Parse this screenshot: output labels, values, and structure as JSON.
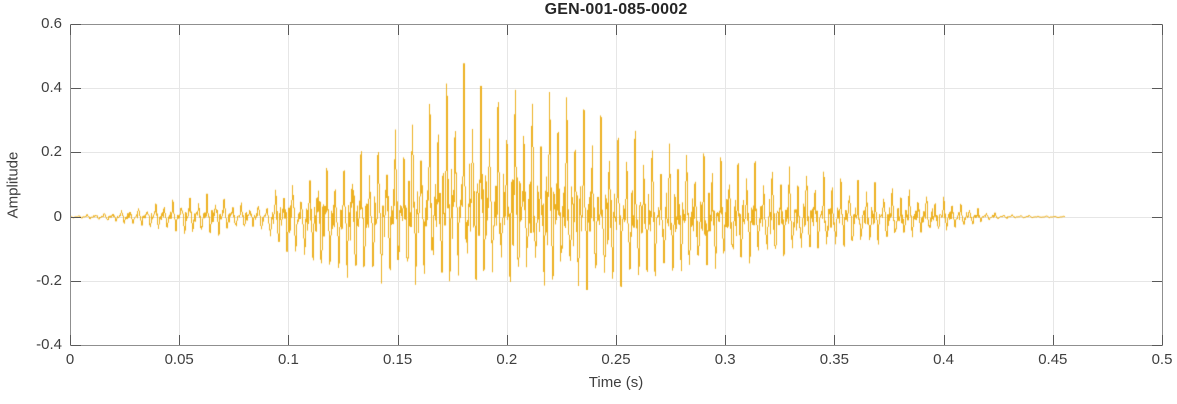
{
  "chart_data": {
    "type": "line",
    "subtype": "audio-waveform",
    "title": "GEN-001-085-0002",
    "xlabel": "Time (s)",
    "ylabel": "Amplitude",
    "xlim": [
      0,
      0.5
    ],
    "ylim": [
      -0.4,
      0.6
    ],
    "xticks": [
      0,
      0.05,
      0.1,
      0.15,
      0.2,
      0.25,
      0.3,
      0.35,
      0.4,
      0.45,
      0.5
    ],
    "yticks": [
      -0.4,
      -0.2,
      0,
      0.2,
      0.4,
      0.6
    ],
    "grid": true,
    "legend": null,
    "line_color": "#EDB120",
    "signal": {
      "t_start": 0,
      "t_end": 0.455,
      "fundamental_hz": 255,
      "peak_amplitude": 0.57,
      "peak_time": 0.181,
      "min_amplitude": -0.29,
      "min_time": 0.24,
      "envelope_t": [
        0,
        0.01,
        0.02,
        0.03,
        0.04,
        0.05,
        0.06,
        0.07,
        0.08,
        0.085,
        0.09,
        0.095,
        0.105,
        0.115,
        0.125,
        0.135,
        0.145,
        0.155,
        0.165,
        0.172,
        0.178,
        0.181,
        0.184,
        0.19,
        0.2,
        0.21,
        0.218,
        0.225,
        0.232,
        0.24,
        0.25,
        0.26,
        0.27,
        0.28,
        0.29,
        0.3,
        0.31,
        0.32,
        0.33,
        0.34,
        0.35,
        0.36,
        0.37,
        0.38,
        0.39,
        0.4,
        0.405,
        0.41,
        0.415,
        0.42,
        0.43,
        0.44,
        0.455
      ],
      "envelope_upper": [
        0.005,
        0.01,
        0.02,
        0.035,
        0.055,
        0.075,
        0.09,
        0.085,
        0.05,
        0.04,
        0.08,
        0.12,
        0.15,
        0.19,
        0.23,
        0.26,
        0.31,
        0.35,
        0.42,
        0.47,
        0.53,
        0.57,
        0.48,
        0.44,
        0.44,
        0.42,
        0.43,
        0.43,
        0.41,
        0.36,
        0.31,
        0.28,
        0.25,
        0.23,
        0.215,
        0.2,
        0.185,
        0.17,
        0.16,
        0.15,
        0.14,
        0.125,
        0.115,
        0.095,
        0.08,
        0.065,
        0.055,
        0.045,
        0.03,
        0.018,
        0.008,
        0.005,
        0.003
      ],
      "envelope_lower": [
        -0.005,
        -0.01,
        -0.02,
        -0.035,
        -0.05,
        -0.065,
        -0.075,
        -0.07,
        -0.045,
        -0.035,
        -0.08,
        -0.12,
        -0.16,
        -0.2,
        -0.235,
        -0.245,
        -0.25,
        -0.255,
        -0.26,
        -0.265,
        -0.27,
        -0.27,
        -0.265,
        -0.26,
        -0.255,
        -0.26,
        -0.27,
        -0.275,
        -0.285,
        -0.29,
        -0.275,
        -0.26,
        -0.235,
        -0.22,
        -0.205,
        -0.19,
        -0.175,
        -0.16,
        -0.148,
        -0.135,
        -0.125,
        -0.115,
        -0.105,
        -0.085,
        -0.07,
        -0.055,
        -0.048,
        -0.04,
        -0.028,
        -0.016,
        -0.007,
        -0.004,
        -0.003
      ]
    }
  },
  "styles": {
    "background": "#ffffff",
    "axis_color": "#8f8f8f",
    "tick_color": "#595959",
    "grid_color": "#e6e6e6",
    "label_color": "#3f3f3f",
    "title_color": "#262626"
  }
}
